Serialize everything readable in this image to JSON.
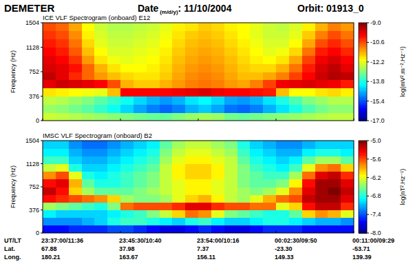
{
  "header": {
    "instrument": "DEMETER",
    "date_label": "Date",
    "date_format": "(m/d/y)",
    "date_value": ": 11/10/2004",
    "orbit": "Orbit: 01913_0"
  },
  "chart_data": [
    {
      "type": "heatmap",
      "title": "ICE VLF Spectrogram (onboard) E12",
      "y_label": "Frequency (Hz)",
      "xlim": [
        0,
        34
      ],
      "xticks": [
        0,
        8.5,
        17,
        25.5,
        34
      ],
      "ylim": [
        0,
        1504
      ],
      "yticks": [
        0,
        376,
        752,
        1128,
        1504
      ],
      "tick_labels": "y",
      "cells": [
        [
          -12.4,
          -12.5,
          -12.6,
          -12.7,
          -12.8,
          -12.9,
          -13.0,
          -13.1,
          -13.2,
          -13.2,
          -13.0,
          -12.8,
          -12.7,
          -12.8,
          -13.1,
          -13.2,
          -13.1,
          -13.0,
          -12.9,
          -12.8,
          -12.7,
          -12.6,
          -12.5,
          -12.5
        ],
        [
          -12.8,
          -12.9,
          -13.1,
          -13.3,
          -13.6,
          -13.9,
          -14.3,
          -14.7,
          -15.0,
          -15.2,
          -15.0,
          -14.6,
          -14.4,
          -14.7,
          -15.1,
          -15.2,
          -15.0,
          -14.6,
          -14.2,
          -13.8,
          -13.4,
          -13.1,
          -12.9,
          -12.9
        ],
        [
          -12.5,
          -12.6,
          -12.8,
          -13.0,
          -13.3,
          -13.6,
          -13.9,
          -14.3,
          -14.6,
          -14.8,
          -14.6,
          -14.2,
          -14.0,
          -14.3,
          -14.7,
          -14.8,
          -14.6,
          -14.2,
          -13.8,
          -13.4,
          -13.0,
          -12.8,
          -12.6,
          -12.6
        ],
        [
          -11.8,
          -11.9,
          -12.0,
          -12.1,
          -12.2,
          -11.5,
          -10.0,
          -10.0,
          -10.0,
          -10.0,
          -9.9,
          -9.8,
          -9.7,
          -9.9,
          -10.0,
          -10.0,
          -10.1,
          -10.2,
          -11.5,
          -12.0,
          -12.0,
          -11.8,
          -11.7,
          -11.9
        ],
        [
          -9.8,
          -9.6,
          -9.7,
          -9.8,
          -10.0,
          -10.6,
          -11.4,
          -11.6,
          -11.6,
          -11.4,
          -11.2,
          -11.0,
          -10.9,
          -11.0,
          -11.2,
          -11.3,
          -11.0,
          -10.5,
          -9.9,
          -9.8,
          -9.7,
          -9.8,
          -9.9,
          -10.2
        ],
        [
          -9.5,
          -9.8,
          -10.3,
          -10.8,
          -11.2,
          -11.5,
          -11.7,
          -11.8,
          -11.8,
          -11.6,
          -11.3,
          -11.1,
          -11.0,
          -11.1,
          -11.3,
          -11.5,
          -11.5,
          -11.3,
          -11.0,
          -10.5,
          -10.0,
          -9.6,
          -9.4,
          -9.5
        ],
        [
          -9.7,
          -9.8,
          -10.1,
          -10.8,
          -11.4,
          -11.8,
          -12.0,
          -12.0,
          -11.9,
          -11.7,
          -11.4,
          -11.2,
          -11.1,
          -11.2,
          -11.4,
          -11.6,
          -11.7,
          -11.7,
          -11.4,
          -10.9,
          -10.2,
          -9.7,
          -9.5,
          -9.8
        ],
        [
          -9.8,
          -10.0,
          -10.4,
          -11.2,
          -11.8,
          -12.1,
          -12.2,
          -12.1,
          -12.0,
          -11.8,
          -11.5,
          -11.3,
          -11.2,
          -11.3,
          -11.5,
          -11.7,
          -11.9,
          -12.0,
          -11.8,
          -11.3,
          -10.5,
          -9.9,
          -9.7,
          -10.0
        ],
        [
          -10.0,
          -10.2,
          -10.7,
          -11.5,
          -12.0,
          -12.3,
          -12.3,
          -12.2,
          -12.1,
          -11.9,
          -11.6,
          -11.4,
          -11.3,
          -11.4,
          -11.6,
          -11.8,
          -12.0,
          -12.2,
          -12.1,
          -11.7,
          -10.9,
          -10.2,
          -10.0,
          -10.3
        ],
        [
          -10.2,
          -10.4,
          -10.9,
          -11.7,
          -12.2,
          -12.4,
          -12.4,
          -12.3,
          -12.2,
          -12.0,
          -11.7,
          -11.5,
          -11.4,
          -11.5,
          -11.7,
          -11.9,
          -12.1,
          -12.3,
          -12.3,
          -12.0,
          -11.3,
          -10.6,
          -10.3,
          -10.6
        ],
        [
          -10.4,
          -10.6,
          -11.1,
          -11.9,
          -12.3,
          -12.5,
          -12.5,
          -12.4,
          -12.3,
          -12.1,
          -11.8,
          -11.6,
          -11.5,
          -11.6,
          -11.8,
          -12.0,
          -12.2,
          -12.4,
          -12.4,
          -12.2,
          -11.6,
          -11.0,
          -10.6,
          -10.9
        ],
        [
          -10.6,
          -10.8,
          -11.3,
          -12.0,
          -12.4,
          -12.6,
          -12.6,
          -12.5,
          -12.4,
          -12.2,
          -11.9,
          -11.8,
          -11.6,
          -11.7,
          -11.9,
          -12.0,
          -12.2,
          -12.4,
          -12.5,
          -12.3,
          -11.9,
          -11.4,
          -11.0,
          -11.2
        ]
      ],
      "colorbar": {
        "range": [
          -17,
          -9
        ],
        "ticks": [
          {
            "value": -9,
            "label": "-9.0"
          },
          -10.6,
          -12.2,
          -13.8,
          -15.4,
          {
            "value": -17,
            "label": "-17.0"
          }
        ],
        "label": "log(mV².m⁻².Hz⁻¹)"
      }
    },
    {
      "type": "heatmap",
      "title": "IMSC VLF Spectrogram (onboard) B2",
      "y_label": "Frequency (Hz)",
      "xlim": [
        0,
        34
      ],
      "xticks": [
        0,
        8.5,
        17,
        25.5,
        34
      ],
      "ylim": [
        0,
        1504
      ],
      "yticks": [
        0,
        376,
        752,
        1128,
        1504
      ],
      "tick_labels": "y",
      "cells": [
        [
          -7.6,
          -7.6,
          -7.5,
          -7.5,
          -7.5,
          -7.4,
          -7.4,
          -7.5,
          -7.6,
          -7.7,
          -7.7,
          -7.6,
          -7.5,
          -7.6,
          -7.7,
          -7.7,
          -7.6,
          -7.5,
          -7.5,
          -7.5,
          -7.6,
          -7.6,
          -7.6,
          -7.6
        ],
        [
          -7.2,
          -7.2,
          -7.2,
          -7.1,
          -7.0,
          -6.8,
          -6.7,
          -6.7,
          -6.8,
          -6.9,
          -7.0,
          -6.8,
          -6.7,
          -6.9,
          -7.0,
          -7.0,
          -6.9,
          -6.8,
          -6.8,
          -6.9,
          -7.0,
          -7.1,
          -7.1,
          -7.2
        ],
        [
          -6.9,
          -7.0,
          -7.0,
          -7.0,
          -7.0,
          -6.9,
          -6.8,
          -6.7,
          -6.5,
          -6.3,
          -6.0,
          -5.7,
          -5.8,
          -6.2,
          -6.5,
          -6.6,
          -6.7,
          -6.8,
          -6.8,
          -6.6,
          -6.0,
          -5.8,
          -5.9,
          -6.2
        ],
        [
          -6.4,
          -6.5,
          -6.6,
          -6.7,
          -6.8,
          -6.5,
          -5.7,
          -5.6,
          -5.6,
          -5.6,
          -5.5,
          -5.3,
          -5.3,
          -5.5,
          -5.6,
          -5.6,
          -5.7,
          -5.7,
          -6.2,
          -6.0,
          -5.4,
          -5.2,
          -5.2,
          -5.5
        ],
        [
          -5.4,
          -5.5,
          -5.6,
          -5.7,
          -5.8,
          -6.0,
          -6.4,
          -6.5,
          -6.5,
          -6.4,
          -6.2,
          -6.0,
          -5.9,
          -6.1,
          -6.3,
          -6.4,
          -6.2,
          -5.9,
          -5.7,
          -5.6,
          -5.2,
          -5.1,
          -5.1,
          -5.3
        ],
        [
          -5.2,
          -5.4,
          -6.0,
          -6.4,
          -6.6,
          -6.6,
          -6.6,
          -6.5,
          -6.4,
          -6.3,
          -6.2,
          -6.1,
          -6.1,
          -6.2,
          -6.3,
          -6.4,
          -6.5,
          -6.4,
          -6.2,
          -5.8,
          -5.3,
          -5.1,
          -5.0,
          -5.2
        ],
        [
          -5.4,
          -5.3,
          -5.9,
          -6.6,
          -6.8,
          -6.8,
          -6.7,
          -6.6,
          -6.5,
          -6.3,
          -6.2,
          -6.1,
          -6.1,
          -6.2,
          -6.3,
          -6.5,
          -6.6,
          -6.6,
          -6.5,
          -6.1,
          -5.4,
          -5.1,
          -5.1,
          -5.3
        ],
        [
          -5.8,
          -5.6,
          -6.2,
          -6.8,
          -6.9,
          -6.8,
          -6.7,
          -6.6,
          -6.5,
          -6.3,
          -6.1,
          -6.0,
          -6.0,
          -6.1,
          -6.3,
          -6.5,
          -6.6,
          -6.7,
          -6.7,
          -6.4,
          -5.7,
          -5.3,
          -5.2,
          -5.5
        ],
        [
          -6.3,
          -6.2,
          -6.8,
          -7.0,
          -7.0,
          -6.9,
          -6.8,
          -6.7,
          -6.6,
          -6.3,
          -6.1,
          -6.0,
          -6.0,
          -6.1,
          -6.3,
          -6.5,
          -6.7,
          -6.8,
          -6.9,
          -6.7,
          -6.2,
          -5.8,
          -5.7,
          -6.0
        ],
        [
          -6.7,
          -6.7,
          -7.0,
          -7.1,
          -7.1,
          -7.0,
          -6.9,
          -6.8,
          -6.7,
          -6.4,
          -6.2,
          -6.1,
          -6.1,
          -6.2,
          -6.3,
          -6.6,
          -6.8,
          -6.9,
          -7.0,
          -6.9,
          -6.6,
          -6.4,
          -6.4,
          -6.6
        ],
        [
          -6.9,
          -6.9,
          -7.1,
          -7.2,
          -7.2,
          -7.1,
          -7.0,
          -6.9,
          -6.8,
          -6.5,
          -6.3,
          -6.2,
          -6.2,
          -6.3,
          -6.4,
          -6.7,
          -6.9,
          -7.0,
          -7.1,
          -7.1,
          -6.9,
          -6.8,
          -6.8,
          -6.9
        ],
        [
          -7.0,
          -7.0,
          -7.2,
          -7.3,
          -7.3,
          -7.2,
          -7.1,
          -7.0,
          -6.9,
          -6.6,
          -6.4,
          -6.3,
          -6.3,
          -6.4,
          -6.5,
          -6.8,
          -7.0,
          -7.1,
          -7.2,
          -7.2,
          -7.1,
          -7.0,
          -7.0,
          -7.0
        ]
      ],
      "colorbar": {
        "range": [
          -8,
          -5
        ],
        "ticks": [
          {
            "value": -5,
            "label": "-5.0"
          },
          -5.6,
          -6.2,
          -6.8,
          -7.4,
          {
            "value": -8,
            "label": "-8.0"
          }
        ],
        "label": "log(nT².Hz⁻¹)"
      }
    }
  ],
  "footer": {
    "row_labels": [
      "UT/LT",
      "Lat.",
      "Long."
    ],
    "columns": [
      [
        "23:37:00/11:36",
        "67.88",
        "180.21"
      ],
      [
        "23:45:30/10:40",
        "37.98",
        "163.67"
      ],
      [
        "23:54:00/10:16",
        "7.37",
        "156.11"
      ],
      [
        "00:02:30/09:50",
        "-23.30",
        "149.33"
      ],
      [
        "00:11:00/09:29",
        "-53.71",
        "139.39"
      ]
    ]
  }
}
